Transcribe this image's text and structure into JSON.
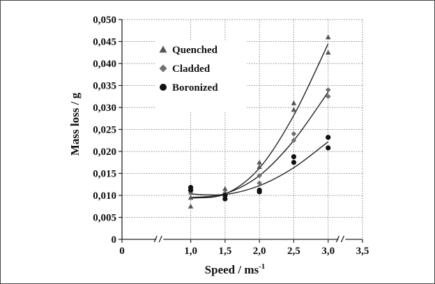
{
  "chart_data": {
    "type": "scatter",
    "xlabel": "Speed / ms",
    "xlabel_sup": "-1",
    "ylabel": "Mass loss / g",
    "xlim": [
      0,
      3.5
    ],
    "ylim": [
      0,
      0.05
    ],
    "x_ticks": [
      {
        "v": 0,
        "label": "0"
      },
      {
        "v": 1.0,
        "label": "1,0"
      },
      {
        "v": 1.5,
        "label": "1,5"
      },
      {
        "v": 2.0,
        "label": "2,0"
      },
      {
        "v": 2.5,
        "label": "2,5"
      },
      {
        "v": 3.0,
        "label": "3,0"
      },
      {
        "v": 3.5,
        "label": "3,5"
      }
    ],
    "y_ticks": [
      {
        "v": 0,
        "label": "0"
      },
      {
        "v": 0.005,
        "label": "0,005"
      },
      {
        "v": 0.01,
        "label": "0,010"
      },
      {
        "v": 0.015,
        "label": "0,015"
      },
      {
        "v": 0.02,
        "label": "0,020"
      },
      {
        "v": 0.025,
        "label": "0,025"
      },
      {
        "v": 0.03,
        "label": "0,030"
      },
      {
        "v": 0.035,
        "label": "0,035"
      },
      {
        "v": 0.04,
        "label": "0,040"
      },
      {
        "v": 0.045,
        "label": "0,045"
      },
      {
        "v": 0.05,
        "label": "0,050"
      }
    ],
    "grid": true,
    "axis_breaks": true,
    "legend_position": "top-left",
    "series": [
      {
        "name": "Quenched",
        "marker": "triangle",
        "color": "#555555",
        "points": [
          [
            1.0,
            0.0075
          ],
          [
            1.0,
            0.0095
          ],
          [
            1.5,
            0.0115
          ],
          [
            1.5,
            0.0105
          ],
          [
            2.0,
            0.0175
          ],
          [
            2.0,
            0.0165
          ],
          [
            2.5,
            0.031
          ],
          [
            2.5,
            0.0295
          ],
          [
            3.0,
            0.046
          ],
          [
            3.0,
            0.0425
          ]
        ],
        "fit": [
          [
            1.0,
            0.0094
          ],
          [
            1.5,
            0.0103
          ],
          [
            2.0,
            0.0162
          ],
          [
            2.5,
            0.0282
          ],
          [
            3.0,
            0.0445
          ]
        ]
      },
      {
        "name": "Cladded",
        "marker": "diamond",
        "color": "#707070",
        "points": [
          [
            1.0,
            0.0105
          ],
          [
            1.0,
            0.011
          ],
          [
            1.5,
            0.0105
          ],
          [
            1.5,
            0.0098
          ],
          [
            2.0,
            0.0145
          ],
          [
            2.0,
            0.0128
          ],
          [
            2.5,
            0.024
          ],
          [
            2.5,
            0.0225
          ],
          [
            3.0,
            0.034
          ],
          [
            3.0,
            0.0325
          ]
        ],
        "fit": [
          [
            1.0,
            0.0095
          ],
          [
            1.5,
            0.0104
          ],
          [
            2.0,
            0.0145
          ],
          [
            2.5,
            0.0225
          ],
          [
            3.0,
            0.0335
          ]
        ]
      },
      {
        "name": "Boronized",
        "marker": "circle",
        "color": "#111111",
        "points": [
          [
            1.0,
            0.0118
          ],
          [
            1.0,
            0.0112
          ],
          [
            1.5,
            0.0092
          ],
          [
            1.5,
            0.01
          ],
          [
            2.0,
            0.0108
          ],
          [
            2.0,
            0.0112
          ],
          [
            2.5,
            0.0188
          ],
          [
            2.5,
            0.0175
          ],
          [
            3.0,
            0.0232
          ],
          [
            3.0,
            0.0208
          ]
        ],
        "fit": [
          [
            1.0,
            0.0103
          ],
          [
            1.5,
            0.0102
          ],
          [
            2.0,
            0.0122
          ],
          [
            2.5,
            0.0163
          ],
          [
            3.0,
            0.0222
          ]
        ]
      }
    ]
  }
}
